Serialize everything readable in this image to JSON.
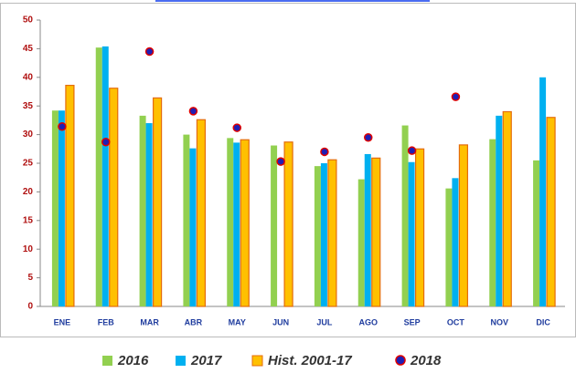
{
  "chart_data": {
    "type": "bar",
    "categories": [
      "ENE",
      "FEB",
      "MAR",
      "ABR",
      "MAY",
      "JUN",
      "JUL",
      "AGO",
      "SEP",
      "OCT",
      "NOV",
      "DIC"
    ],
    "series": [
      {
        "name": "2016",
        "color": "#92d050",
        "style": "bar",
        "values": [
          34.2,
          45.2,
          33.3,
          30.0,
          29.4,
          28.1,
          24.5,
          22.2,
          31.6,
          20.6,
          29.2,
          25.5
        ]
      },
      {
        "name": "2017",
        "color": "#00b0f0",
        "style": "bar",
        "values": [
          34.2,
          45.4,
          32.0,
          27.6,
          28.6,
          null,
          25.0,
          26.6,
          25.2,
          22.4,
          33.3,
          40.0
        ]
      },
      {
        "name": "Hist. 2001-17",
        "color": "#ffc000",
        "style": "bar",
        "values": [
          38.6,
          38.1,
          36.4,
          32.6,
          29.1,
          28.7,
          25.6,
          25.9,
          27.5,
          28.2,
          34.0,
          33.0
        ]
      },
      {
        "name": "2018",
        "color": "#1f1fb4",
        "style": "dot",
        "values": [
          31.4,
          28.7,
          44.5,
          34.1,
          31.2,
          25.3,
          27.0,
          29.5,
          27.2,
          36.6,
          null,
          null
        ]
      }
    ],
    "ylim": [
      0,
      50
    ],
    "yticks": [
      0,
      5,
      10,
      15,
      20,
      25,
      30,
      35,
      40,
      45,
      50
    ],
    "grid": false
  }
}
